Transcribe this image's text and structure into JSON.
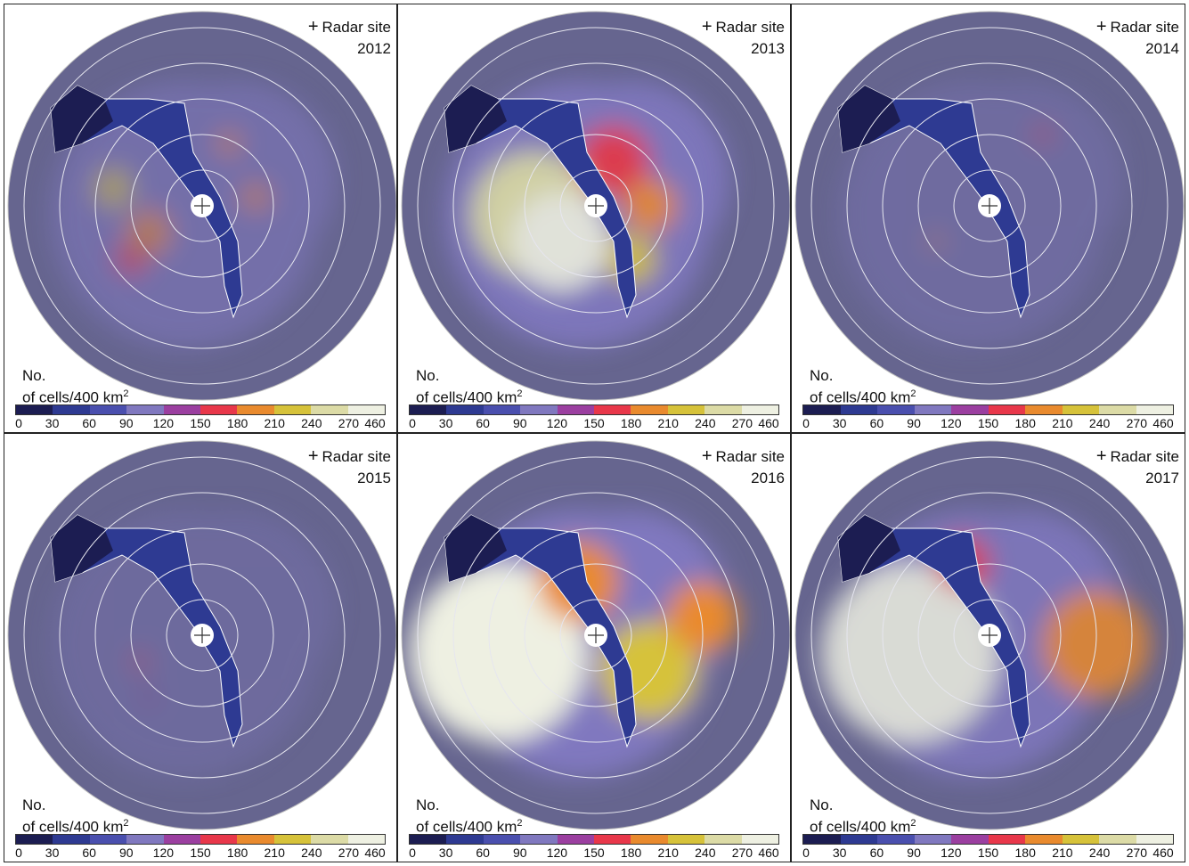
{
  "legend": {
    "marker_label": "Radar site",
    "unit_line1": "No.",
    "unit_line2": "of cells/400 km",
    "unit_sup": "2",
    "tick_labels": [
      "0",
      "30",
      "60",
      "90",
      "120",
      "150",
      "180",
      "210",
      "240",
      "270",
      "460"
    ],
    "bin_colors": [
      "#1c1d52",
      "#2e3a92",
      "#4a4fae",
      "#8078bf",
      "#9b3fa0",
      "#e8374a",
      "#e98a2e",
      "#d6c23a",
      "#dcdba6",
      "#eef0e2"
    ]
  },
  "colors": {
    "background_fill": "#66658f",
    "river_dark": "#1c1d52",
    "ring_stroke": "#e6e6ef",
    "outer_ring": "#bdbdbd"
  },
  "chart_data": [
    {
      "type": "heatmap",
      "year": "2012",
      "color_scale_ticks": [
        0,
        30,
        60,
        90,
        120,
        150,
        180,
        210,
        240,
        270,
        460
      ]
    },
    {
      "type": "heatmap",
      "year": "2013",
      "color_scale_ticks": [
        0,
        30,
        60,
        90,
        120,
        150,
        180,
        210,
        240,
        270,
        460
      ]
    },
    {
      "type": "heatmap",
      "year": "2014",
      "color_scale_ticks": [
        0,
        30,
        60,
        90,
        120,
        150,
        180,
        210,
        240,
        270,
        460
      ]
    },
    {
      "type": "heatmap",
      "year": "2015",
      "color_scale_ticks": [
        0,
        30,
        60,
        90,
        120,
        150,
        180,
        210,
        240,
        270,
        460
      ]
    },
    {
      "type": "heatmap",
      "year": "2016",
      "color_scale_ticks": [
        0,
        30,
        60,
        90,
        120,
        150,
        180,
        210,
        240,
        270,
        460
      ]
    },
    {
      "type": "heatmap",
      "year": "2017",
      "color_scale_ticks": [
        0,
        30,
        60,
        90,
        120,
        150,
        180,
        210,
        240,
        270,
        460
      ]
    }
  ]
}
